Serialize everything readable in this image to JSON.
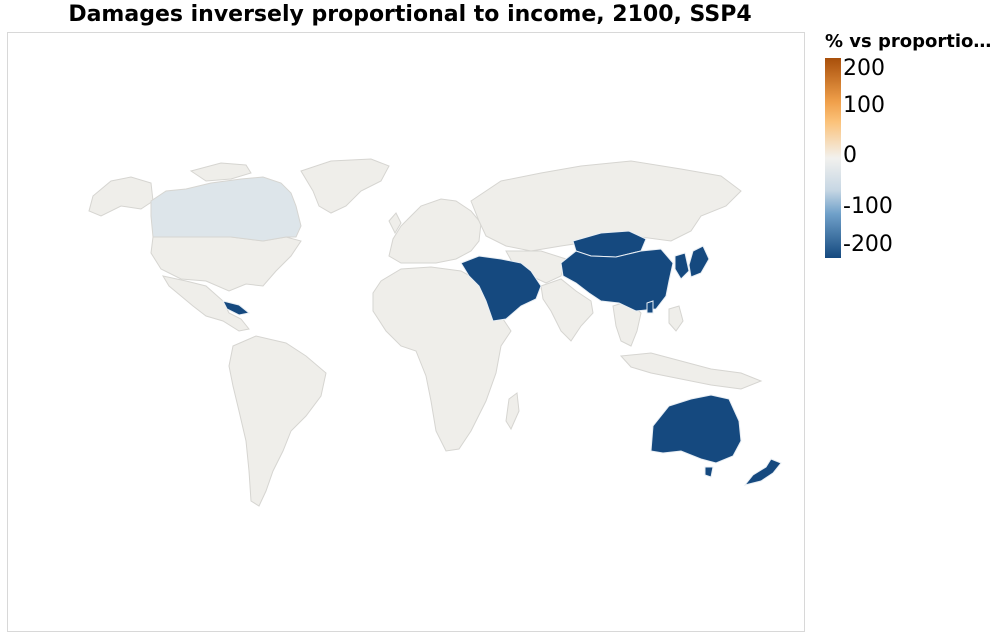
{
  "title": "Damages inversely proportional to income, 2100, SSP4",
  "legend": {
    "title": "% vs proportio…",
    "ticks": [
      {
        "label": "200",
        "value": 200
      },
      {
        "label": "100",
        "value": 100
      },
      {
        "label": "0",
        "value": 0
      },
      {
        "label": "-100",
        "value": -100
      },
      {
        "label": "-200",
        "value": -200
      }
    ],
    "range": [
      -200,
      200
    ],
    "colors": {
      "max": "#a84f0b",
      "high": "#fbc27a",
      "zero": "#f2f1ee",
      "low": "#9bbcd6",
      "min": "#15497f"
    }
  },
  "map": {
    "background_land": "#efeeea",
    "border": "#d6d5d1",
    "regions": [
      {
        "name": "Canada",
        "value": -20,
        "color": "#dde5ea"
      },
      {
        "name": "Cuba",
        "value": -210,
        "color": "#15497f"
      },
      {
        "name": "Middle East",
        "value": -210,
        "color": "#15497f"
      },
      {
        "name": "China",
        "value": -210,
        "color": "#15497f"
      },
      {
        "name": "Mongolia",
        "value": -210,
        "color": "#15497f"
      },
      {
        "name": "Korea",
        "value": -210,
        "color": "#15497f"
      },
      {
        "name": "Japan",
        "value": -210,
        "color": "#15497f"
      },
      {
        "name": "Taiwan",
        "value": -210,
        "color": "#15497f"
      },
      {
        "name": "Australia",
        "value": -210,
        "color": "#15497f"
      },
      {
        "name": "New Zealand",
        "value": -210,
        "color": "#15497f"
      }
    ]
  }
}
